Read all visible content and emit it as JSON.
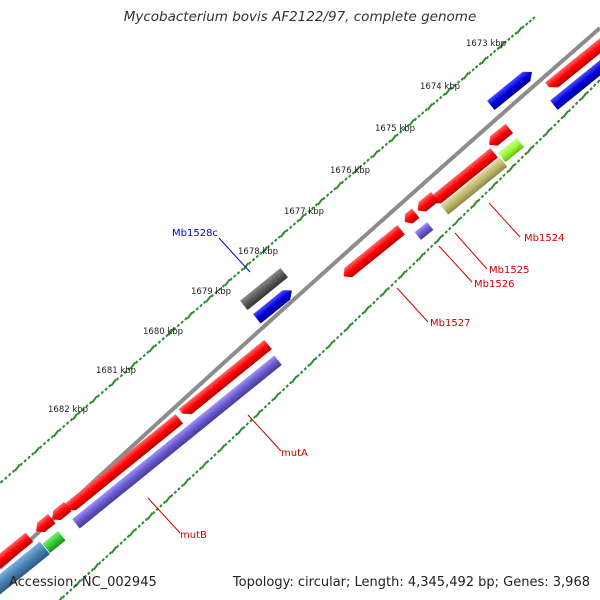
{
  "title": "Mycobacterium bovis AF2122/97, complete genome",
  "accession": "Accession: NC_002945",
  "summary": "Topology: circular; Length: 4,345,492 bp; Genes: 3,968",
  "ticks": [
    "1673 kbp",
    "1674 kbp",
    "1675 kbp",
    "1676 kbp",
    "1677 kbp",
    "1678 kbp",
    "1679 kbp",
    "1680 kbp",
    "1681 kbp",
    "1682 kbp"
  ],
  "genes": {
    "mb1524": "Mb1524",
    "mb1525": "Mb1525",
    "mb1526": "Mb1526",
    "mb1527": "Mb1527",
    "mb1528c": "Mb1528c",
    "muta": "mutA",
    "mutb": "mutB"
  },
  "colors": {
    "backbone": "#8c8c8c",
    "tick_mark": "#2e8b2e",
    "gene_red": "#ff0000",
    "gene_blue": "#0000dd",
    "gene_purple": "#6a5acd",
    "gene_gray": "#5a5a5a",
    "gene_khaki": "#bdb76b",
    "gene_lime": "#99ff33",
    "gene_green": "#33cc33",
    "gene_steel": "#4682b4",
    "label_red": "#cc0000",
    "label_blue": "#0000cc"
  }
}
